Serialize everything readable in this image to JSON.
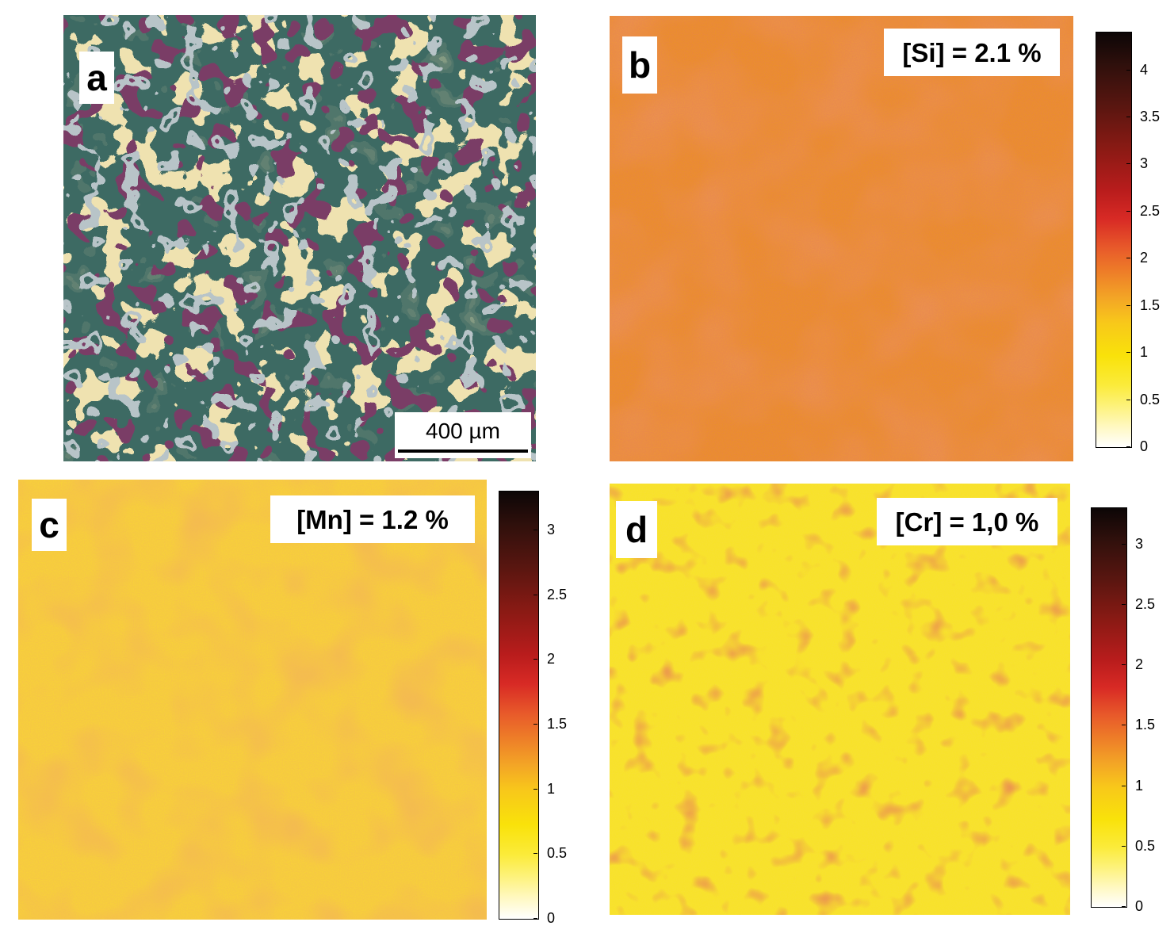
{
  "panels": {
    "a": {
      "letter": "a",
      "scalebar": "400 µm"
    },
    "b": {
      "letter": "b",
      "label": "[Si] = 2.1 %"
    },
    "c": {
      "letter": "c",
      "label": "[Mn] = 1.2 %"
    },
    "d": {
      "letter": "d",
      "label": "[Cr] = 1,0 %"
    }
  },
  "colorbars": {
    "b": {
      "min": 0,
      "max": 4.4,
      "ticks": [
        "0",
        "0.5",
        "1",
        "1.5",
        "2",
        "2.5",
        "3",
        "3.5",
        "4"
      ]
    },
    "c": {
      "min": 0,
      "max": 3.3,
      "ticks": [
        "0",
        "0.5",
        "1",
        "1.5",
        "2",
        "2.5",
        "3"
      ]
    },
    "d": {
      "min": 0,
      "max": 3.3,
      "ticks": [
        "0",
        "0.5",
        "1",
        "1.5",
        "2",
        "2.5",
        "3"
      ]
    }
  },
  "colors": {
    "background": "#ffffff",
    "map_yellow": "#f8e01a",
    "map_orange": "#e8721e",
    "map_red": "#c42a1f"
  }
}
